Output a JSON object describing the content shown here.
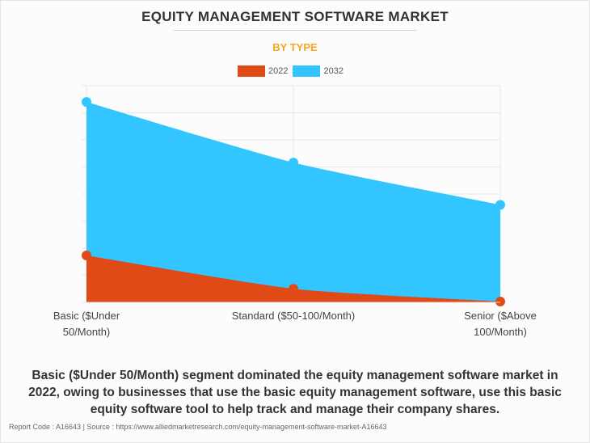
{
  "title": "EQUITY MANAGEMENT SOFTWARE MARKET",
  "subtitle": "BY TYPE",
  "chart_data": {
    "type": "area",
    "categories": [
      "Basic ($Under 50/Month)",
      "Standard ($50-100/Month)",
      "Senior ($Above 100/Month)"
    ],
    "category_lines": [
      [
        "Basic ($Under",
        "50/Month)"
      ],
      [
        "Standard ($50-100/Month)"
      ],
      [
        "Senior ($Above",
        "100/Month)"
      ]
    ],
    "series": [
      {
        "name": "2022",
        "color": "#e04a17",
        "values": [
          1.73,
          0.5,
          0.03
        ]
      },
      {
        "name": "2032",
        "color": "#33c5ff",
        "values": [
          7.4,
          5.16,
          3.6
        ]
      }
    ],
    "ylim": [
      0,
      8
    ],
    "grid": true,
    "legend": "top-center",
    "xlabel": "",
    "ylabel": ""
  },
  "caption": "Basic ($Under 50/Month) segment dominated the equity management software market in 2022, owing to businesses that use the basic equity management software, use this basic equity software tool to help track and manage their company shares.",
  "footer": "Report Code : A16643  |  Source : https://www.alliedmarketresearch.com/equity-management-software-market-A16643"
}
